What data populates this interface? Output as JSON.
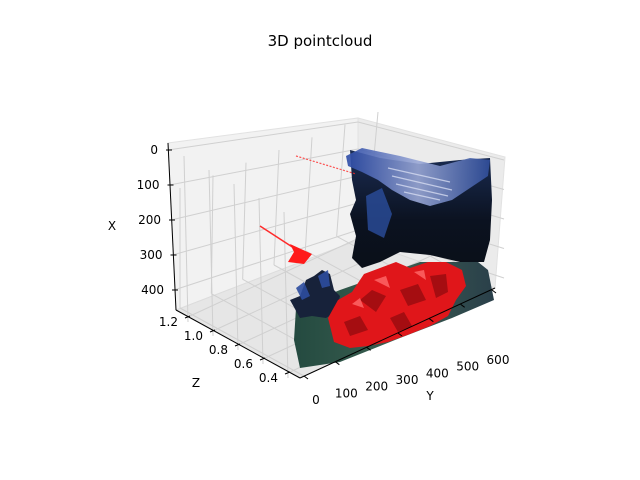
{
  "figure": {
    "title": "3D pointcloud"
  },
  "chart_data": {
    "type": "scatter",
    "projection": "3d",
    "title": "3D pointcloud",
    "xlabel": "Y",
    "ylabel": "Z",
    "zlabel": "X",
    "axes": {
      "Y": {
        "ticks": [
          "0",
          "100",
          "200",
          "300",
          "400",
          "500",
          "600"
        ]
      },
      "Z": {
        "ticks": [
          "0.4",
          "0.6",
          "0.8",
          "1.0",
          "1.2"
        ]
      },
      "X": {
        "ticks": [
          "0",
          "100",
          "200",
          "300",
          "400"
        ],
        "inverted": true
      }
    },
    "grid": true,
    "colors": {
      "pane": "#f2f2f2",
      "grid": "#d0d0d0",
      "axis": "#000000",
      "points_dark": "#0d1626",
      "points_blue": "#2a4fa8",
      "points_red": "#e0161a",
      "points_green": "#2f5a4c",
      "arrow": "#ff2b2b"
    }
  }
}
